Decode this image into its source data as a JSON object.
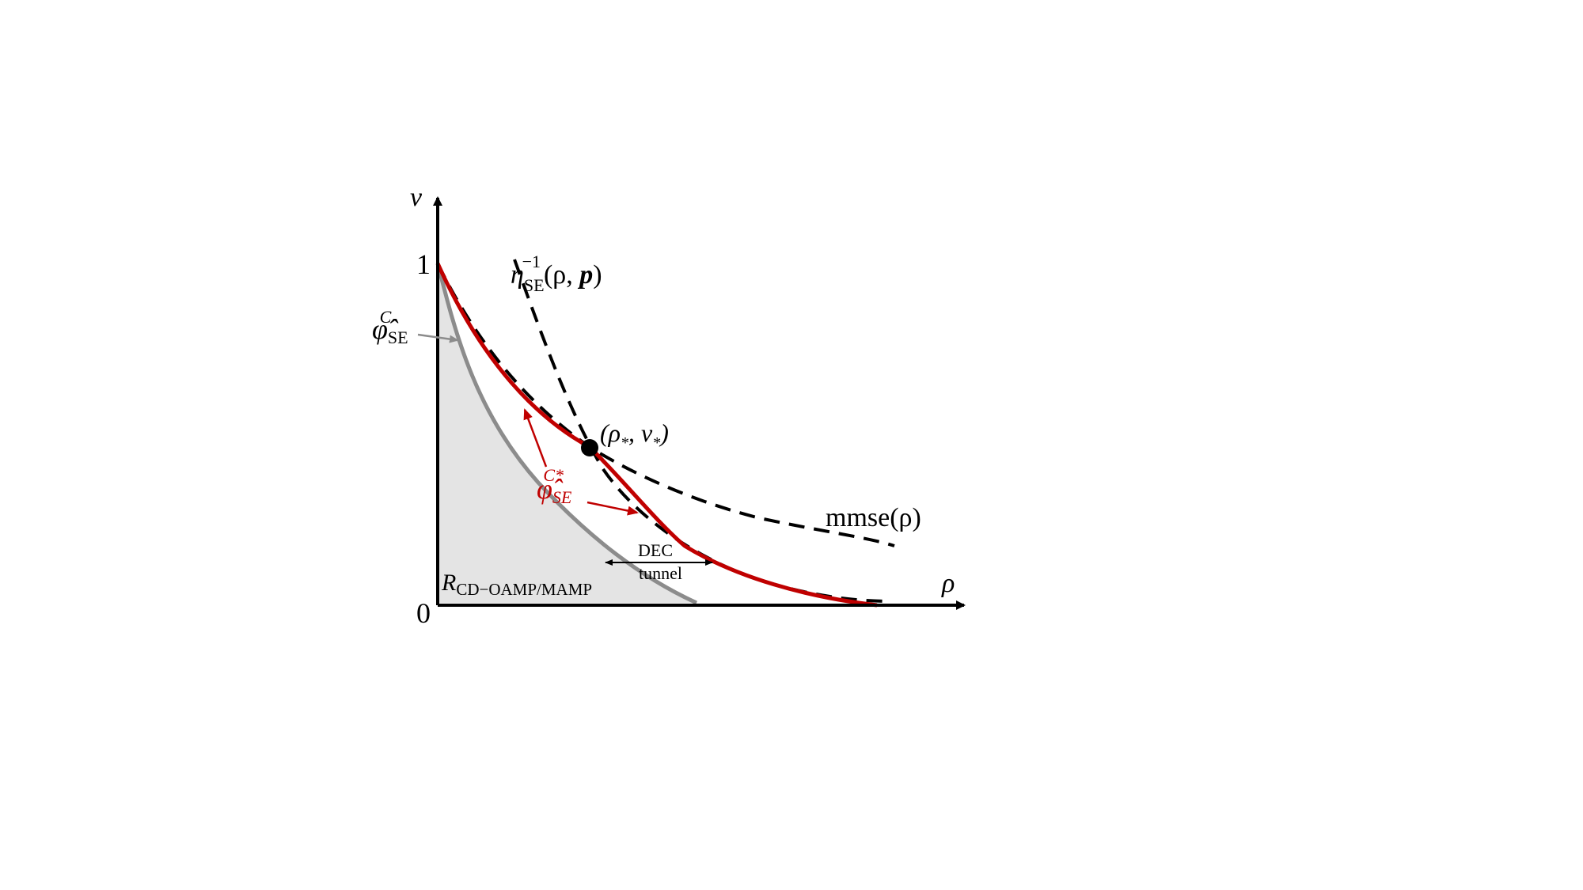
{
  "axes": {
    "y_label": "v",
    "x_label": "ρ",
    "y_tick_top": "1",
    "origin_tick": "0"
  },
  "labels": {
    "eta": {
      "main": "η",
      "sub": "SE",
      "sup": "−1",
      "args_open": "(ρ, ",
      "args_p": "p",
      "args_close": ")"
    },
    "phi_c": {
      "main": "φ̂",
      "sub": "SE",
      "sup": "C"
    },
    "phi_c_star": {
      "main": "φ̂",
      "sub": "SE",
      "sup": "C*"
    },
    "fixed_point": {
      "text": "(ρ",
      "sub1": "*",
      "mid": ", v",
      "sub2": "*",
      "close": ")"
    },
    "mmse": "mmse(ρ)",
    "dec_tunnel_line1": "DEC",
    "dec_tunnel_line2": "tunnel",
    "region": {
      "main": "R",
      "sub": "CD−OAMP/MAMP"
    }
  },
  "colors": {
    "axis": "#000000",
    "red_curve": "#c00000",
    "gray_curve": "#8c8c8c",
    "region_fill": "#e4e4e4",
    "dashed": "#000000"
  }
}
